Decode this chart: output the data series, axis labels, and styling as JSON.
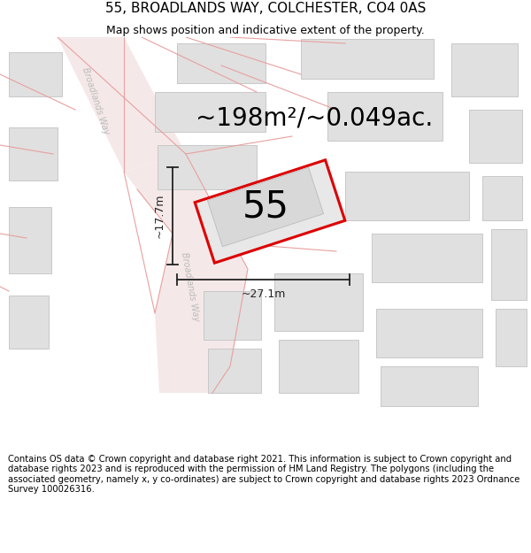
{
  "title": "55, BROADLANDS WAY, COLCHESTER, CO4 0AS",
  "subtitle": "Map shows position and indicative extent of the property.",
  "area_text": "~198m²/~0.049ac.",
  "plot_number": "55",
  "dim_width": "~27.1m",
  "dim_height": "~17.7m",
  "footer": "Contains OS data © Crown copyright and database right 2021. This information is subject to Crown copyright and database rights 2023 and is reproduced with the permission of HM Land Registry. The polygons (including the associated geometry, namely x, y co-ordinates) are subject to Crown copyright and database rights 2023 Ordnance Survey 100026316.",
  "map_bg": "#ffffff",
  "road_fill": "#f5e8e8",
  "road_line": "#e8a0a0",
  "plot_fill": "#e8e8e8",
  "plot_outline": "#dd0000",
  "building_fill": "#e0e0e0",
  "building_outline": "#c8c8c8",
  "dim_color": "#222222",
  "label_color": "#aaaaaa",
  "title_fontsize": 11,
  "subtitle_fontsize": 9,
  "area_fontsize": 20,
  "number_fontsize": 30,
  "footer_fontsize": 7.2,
  "dim_fontsize": 9
}
